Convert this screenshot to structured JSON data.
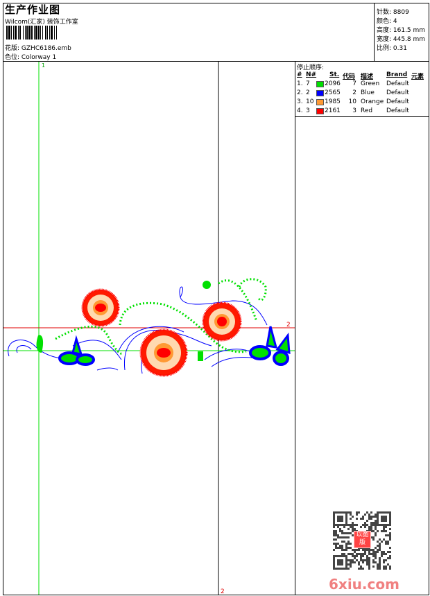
{
  "header": {
    "title": "生产作业图",
    "company": "Wilcom(汇家) 装饰工作室",
    "file_label": "花版:",
    "file_value": "GZHC6186.emb",
    "colorway_label": "色位:",
    "colorway_value": "Colorway 1"
  },
  "info": {
    "stitches": "针数: 8809",
    "colors": "颜色: 4",
    "height": "高度: 161.5 mm",
    "width": "宽度: 445.8 mm",
    "scale": "比例: 0.31"
  },
  "stop_sequence": {
    "title": "停止顺序:",
    "columns": [
      "#",
      "N#",
      "St.",
      "代码",
      "描述",
      "Brand",
      "元素"
    ],
    "rows": [
      {
        "num": "1.",
        "n": "7",
        "color": "#00e000",
        "st": "2096",
        "code": "7",
        "desc": "Green",
        "brand": "Default"
      },
      {
        "num": "2.",
        "n": "2",
        "color": "#0000ff",
        "st": "2565",
        "code": "2",
        "desc": "Blue",
        "brand": "Default"
      },
      {
        "num": "3.",
        "n": "10",
        "color": "#ff9933",
        "st": "1985",
        "code": "10",
        "desc": "Orange",
        "brand": "Default"
      },
      {
        "num": "4.",
        "n": "3",
        "color": "#ff0000",
        "st": "2161",
        "code": "3",
        "desc": "Red",
        "brand": "Default"
      }
    ]
  },
  "design": {
    "marker_1": "1",
    "marker_2a": "2",
    "marker_2b": "2"
  },
  "watermark": {
    "text": "6xiu.com",
    "seal": "以图版"
  }
}
